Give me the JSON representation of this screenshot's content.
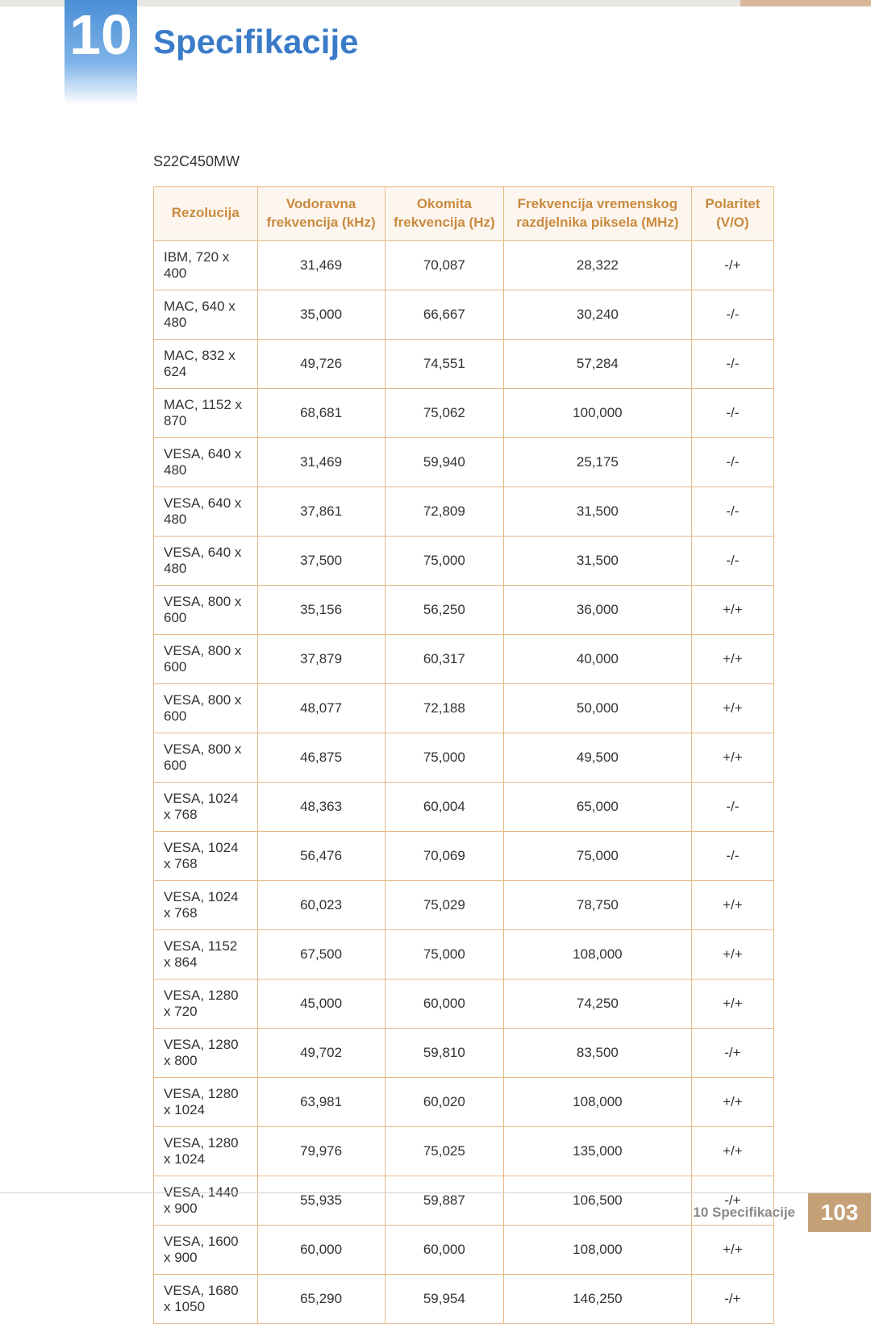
{
  "chapter": {
    "number": "10",
    "title": "Specifikacije"
  },
  "model": "S22C450MW",
  "table": {
    "columns": [
      "Rezolucija",
      "Vodoravna frekvencija (kHz)",
      "Okomita frekvencija (Hz)",
      "Frekvencija vremenskog razdjelnika piksela (MHz)",
      "Polaritet (V/O)"
    ],
    "rows": [
      [
        "IBM, 720 x 400",
        "31,469",
        "70,087",
        "28,322",
        "-/+"
      ],
      [
        "MAC, 640 x 480",
        "35,000",
        "66,667",
        "30,240",
        "-/-"
      ],
      [
        "MAC, 832 x 624",
        "49,726",
        "74,551",
        "57,284",
        "-/-"
      ],
      [
        "MAC, 1152 x 870",
        "68,681",
        "75,062",
        "100,000",
        "-/-"
      ],
      [
        "VESA, 640 x 480",
        "31,469",
        "59,940",
        "25,175",
        "-/-"
      ],
      [
        "VESA, 640 x 480",
        "37,861",
        "72,809",
        "31,500",
        "-/-"
      ],
      [
        "VESA, 640 x 480",
        "37,500",
        "75,000",
        "31,500",
        "-/-"
      ],
      [
        "VESA, 800 x 600",
        "35,156",
        "56,250",
        "36,000",
        "+/+"
      ],
      [
        "VESA, 800 x 600",
        "37,879",
        "60,317",
        "40,000",
        "+/+"
      ],
      [
        "VESA, 800 x 600",
        "48,077",
        "72,188",
        "50,000",
        "+/+"
      ],
      [
        "VESA, 800 x 600",
        "46,875",
        "75,000",
        "49,500",
        "+/+"
      ],
      [
        "VESA, 1024 x 768",
        "48,363",
        "60,004",
        "65,000",
        "-/-"
      ],
      [
        "VESA, 1024 x 768",
        "56,476",
        "70,069",
        "75,000",
        "-/-"
      ],
      [
        "VESA, 1024 x 768",
        "60,023",
        "75,029",
        "78,750",
        "+/+"
      ],
      [
        "VESA, 1152 x 864",
        "67,500",
        "75,000",
        "108,000",
        "+/+"
      ],
      [
        "VESA, 1280 x 720",
        "45,000",
        "60,000",
        "74,250",
        "+/+"
      ],
      [
        "VESA, 1280 x 800",
        "49,702",
        "59,810",
        "83,500",
        "-/+"
      ],
      [
        "VESA, 1280 x 1024",
        "63,981",
        "60,020",
        "108,000",
        "+/+"
      ],
      [
        "VESA, 1280 x 1024",
        "79,976",
        "75,025",
        "135,000",
        "+/+"
      ],
      [
        "VESA, 1440 x 900",
        "55,935",
        "59,887",
        "106,500",
        "-/+"
      ],
      [
        "VESA, 1600 x 900",
        "60,000",
        "60,000",
        "108,000",
        "+/+"
      ],
      [
        "VESA, 1680 x 1050",
        "65,290",
        "59,954",
        "146,250",
        "-/+"
      ]
    ],
    "header_bg": "#fdf6ef",
    "header_text_color": "#c98a3e",
    "border_color": "#e8b887",
    "body_text_color": "#333333"
  },
  "footer": {
    "title": "10 Specifikacije",
    "page": "103",
    "page_bg": "#c6a077"
  },
  "colors": {
    "chapter_title": "#3a7bc8",
    "badge_gradient_top": "#4a8fd6",
    "badge_gradient_bottom": "#ffffff",
    "top_stripe_main": "#e8e6e3",
    "top_stripe_accent": "#d9b89a"
  }
}
